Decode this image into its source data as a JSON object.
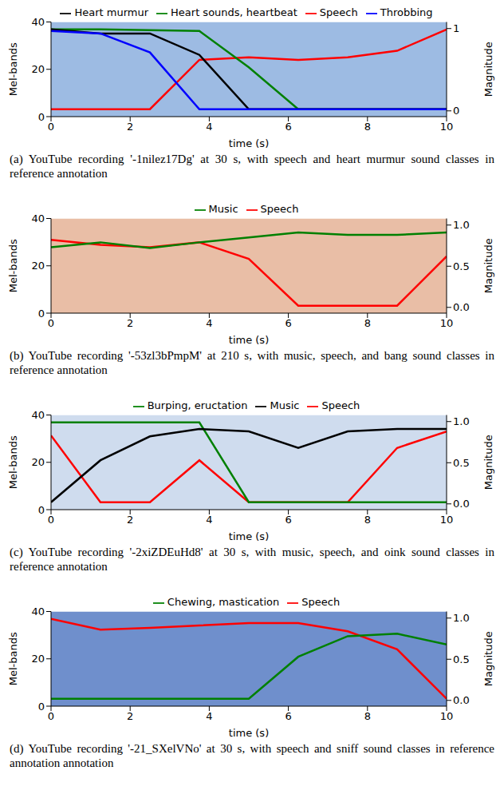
{
  "chart_data": [
    {
      "type": "line",
      "caption": "(a) YouTube recording '-1nilez17Dg' at 30 s, with speech and heart murmur sound classes in reference annotation",
      "xlabel": "time (s)",
      "ylabel": "Mel-bands",
      "y2label": "Magnitude",
      "xlim": [
        0,
        10
      ],
      "xticks": [
        0,
        2,
        4,
        6,
        8,
        10
      ],
      "ylim": [
        0,
        40
      ],
      "yticks": [
        0,
        20,
        40
      ],
      "y2lim": [
        -0.07,
        1.08
      ],
      "y2ticks": [
        0,
        1
      ],
      "grid": false,
      "legend": "top",
      "x": [
        0,
        1.25,
        2.5,
        3.75,
        5,
        6.25,
        7.5,
        8.75,
        10
      ],
      "series": [
        {
          "name": "Speech",
          "color": "#ff0000",
          "axis": "y2",
          "values": [
            0.02,
            0.02,
            0.02,
            0.62,
            0.65,
            0.62,
            0.65,
            0.73,
            0.99
          ]
        },
        {
          "name": "Heart sounds, heartbeat",
          "color": "#008000",
          "axis": "y2",
          "values": [
            0.99,
            0.99,
            0.98,
            0.97,
            0.53,
            0.02,
            0.02,
            0.02,
            0.02
          ]
        },
        {
          "name": "Heart murmur",
          "color": "#000000",
          "axis": "y2",
          "values": [
            0.99,
            0.94,
            0.94,
            0.68,
            0.02,
            0.02,
            0.02,
            0.02,
            0.02
          ]
        },
        {
          "name": "Throbbing",
          "color": "#0000ff",
          "axis": "y2",
          "values": [
            0.97,
            0.94,
            0.71,
            0.02,
            0.02,
            0.02,
            0.02,
            0.02,
            0.02
          ]
        }
      ]
    },
    {
      "type": "line",
      "caption": "(b) YouTube recording '-53zl3bPmpM' at 210 s, with music, speech, and bang sound classes in reference annotation",
      "xlabel": "time (s)",
      "ylabel": "Mel-bands",
      "y2label": "Magnitude",
      "xlim": [
        0,
        10
      ],
      "xticks": [
        0,
        2,
        4,
        6,
        8,
        10
      ],
      "ylim": [
        0,
        40
      ],
      "yticks": [
        0,
        20,
        40
      ],
      "y2lim": [
        -0.07,
        1.08
      ],
      "y2ticks": [
        {
          "value": 0,
          "label": "0.0"
        },
        {
          "value": 0.5,
          "label": "0.5"
        },
        {
          "value": 1,
          "label": "1.0"
        }
      ],
      "grid": false,
      "legend": "top",
      "x": [
        0,
        1.25,
        2.5,
        3.75,
        5,
        6.25,
        7.5,
        8.75,
        10
      ],
      "series": [
        {
          "name": "Speech",
          "color": "#ff0000",
          "axis": "y2",
          "values": [
            0.82,
            0.76,
            0.73,
            0.79,
            0.59,
            0.02,
            0.02,
            0.02,
            0.62
          ]
        },
        {
          "name": "Music",
          "color": "#008000",
          "axis": "y2",
          "values": [
            0.73,
            0.79,
            0.72,
            0.79,
            0.85,
            0.91,
            0.88,
            0.88,
            0.91
          ]
        }
      ]
    },
    {
      "type": "line",
      "caption": "(c) YouTube recording '-2xiZDEuHd8' at 30 s, with music, speech, and oink sound classes in reference annotation",
      "xlabel": "time (s)",
      "ylabel": "Mel-bands",
      "y2label": "Magnitude",
      "xlim": [
        0,
        10
      ],
      "xticks": [
        0,
        2,
        4,
        6,
        8,
        10
      ],
      "ylim": [
        0,
        40
      ],
      "yticks": [
        0,
        20,
        40
      ],
      "y2lim": [
        -0.07,
        1.08
      ],
      "y2ticks": [
        {
          "value": 0,
          "label": "0.0"
        },
        {
          "value": 0.5,
          "label": "0.5"
        },
        {
          "value": 1,
          "label": "1.0"
        }
      ],
      "grid": false,
      "legend": "top",
      "x": [
        0,
        1.25,
        2.5,
        3.75,
        5,
        6.25,
        7.5,
        8.75,
        10
      ],
      "series": [
        {
          "name": "Speech",
          "color": "#ff0000",
          "axis": "y2",
          "values": [
            0.83,
            0.02,
            0.02,
            0.53,
            0.02,
            0.02,
            0.02,
            0.68,
            0.88
          ]
        },
        {
          "name": "Burping, eructation",
          "color": "#008000",
          "axis": "y2",
          "values": [
            0.99,
            0.99,
            0.99,
            0.99,
            0.02,
            0.02,
            0.02,
            0.02,
            0.02
          ]
        },
        {
          "name": "Music",
          "color": "#000000",
          "axis": "y2",
          "values": [
            0.02,
            0.53,
            0.82,
            0.91,
            0.88,
            0.68,
            0.88,
            0.91,
            0.91
          ]
        }
      ]
    },
    {
      "type": "line",
      "caption": "(d) YouTube recording '-21_SXelVNo' at 30 s, with speech and sniff sound classes in reference annotation annotation",
      "xlabel": "time (s)",
      "ylabel": "Mel-bands",
      "y2label": "Magnitude",
      "xlim": [
        0,
        10
      ],
      "xticks": [
        0,
        2,
        4,
        6,
        8,
        10
      ],
      "ylim": [
        0,
        40
      ],
      "yticks": [
        0,
        20,
        40
      ],
      "y2lim": [
        -0.07,
        1.08
      ],
      "y2ticks": [
        {
          "value": 0,
          "label": "0.0"
        },
        {
          "value": 0.5,
          "label": "0.5"
        },
        {
          "value": 1,
          "label": "1.0"
        }
      ],
      "grid": false,
      "legend": "top",
      "x": [
        0,
        1.25,
        2.5,
        3.75,
        5,
        6.25,
        7.5,
        8.75,
        10
      ],
      "series": [
        {
          "name": "Speech",
          "color": "#ff0000",
          "axis": "y2",
          "values": [
            0.99,
            0.86,
            0.88,
            0.91,
            0.94,
            0.94,
            0.84,
            0.62,
            0.02
          ]
        },
        {
          "name": "Chewing, mastication",
          "color": "#008000",
          "axis": "y2",
          "values": [
            0.02,
            0.02,
            0.02,
            0.02,
            0.02,
            0.53,
            0.78,
            0.81,
            0.68
          ]
        }
      ]
    }
  ]
}
